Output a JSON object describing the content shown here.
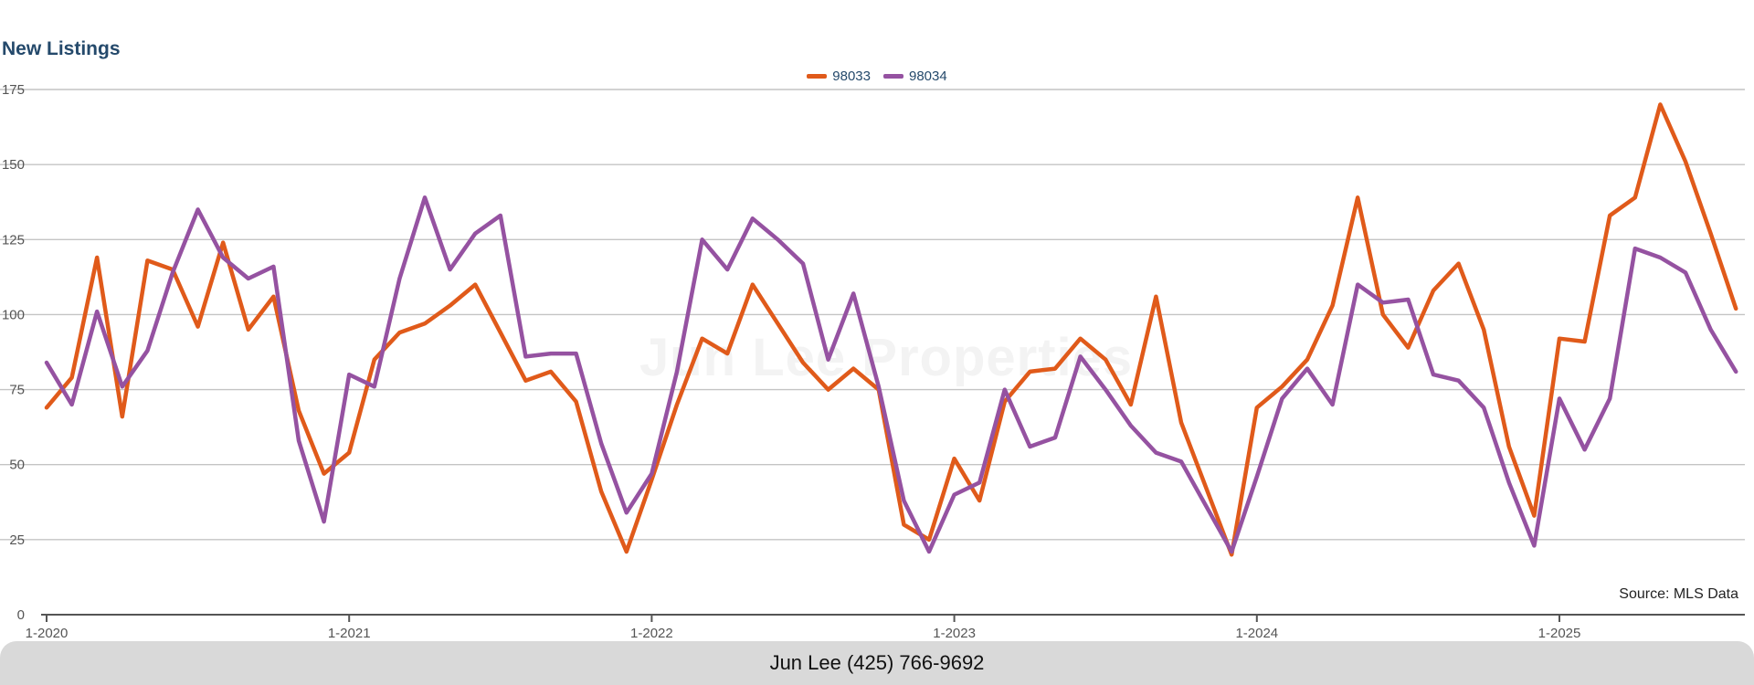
{
  "chart_data": {
    "type": "line",
    "title": "New Listings",
    "source": "Source: MLS Data",
    "watermark": "Jun Lee Properties",
    "xlabel": "",
    "ylabel": "",
    "ylim": [
      0,
      175
    ],
    "yticks": [
      0,
      25,
      50,
      75,
      100,
      125,
      150,
      175
    ],
    "grid": true,
    "legend_position": "top-center",
    "x_tick_labels": [
      {
        "index": 0,
        "label": "1-2020"
      },
      {
        "index": 12,
        "label": "1-2021"
      },
      {
        "index": 24,
        "label": "1-2022"
      },
      {
        "index": 36,
        "label": "1-2023"
      },
      {
        "index": 48,
        "label": "1-2024"
      },
      {
        "index": 60,
        "label": "1-2025"
      }
    ],
    "series": [
      {
        "name": "98033",
        "color": "#e05a1a",
        "values": [
          69,
          79,
          119,
          66,
          118,
          115,
          96,
          124,
          95,
          106,
          68,
          47,
          54,
          85,
          94,
          97,
          103,
          110,
          94,
          78,
          81,
          71,
          41,
          21,
          45,
          70,
          92,
          87,
          110,
          97,
          84,
          75,
          82,
          75,
          30,
          25,
          52,
          38,
          71,
          81,
          82,
          92,
          85,
          70,
          106,
          64,
          42,
          20,
          69,
          76,
          85,
          103,
          139,
          100,
          89,
          108,
          117,
          95,
          56,
          33,
          92,
          91,
          133,
          139,
          170,
          151,
          127,
          102
        ]
      },
      {
        "name": "98034",
        "color": "#9552a1",
        "values": [
          84,
          70,
          101,
          76,
          88,
          114,
          135,
          119,
          112,
          116,
          58,
          31,
          80,
          76,
          112,
          139,
          115,
          127,
          133,
          86,
          87,
          87,
          57,
          34,
          47,
          81,
          125,
          115,
          132,
          125,
          117,
          85,
          107,
          76,
          38,
          21,
          40,
          44,
          75,
          56,
          59,
          86,
          75,
          63,
          54,
          51,
          36,
          21,
          46,
          72,
          82,
          70,
          110,
          104,
          105,
          80,
          78,
          69,
          44,
          23,
          72,
          55,
          72,
          122,
          119,
          114,
          95,
          81
        ]
      }
    ]
  },
  "footer": {
    "text": "Jun Lee (425) 766-9692"
  }
}
